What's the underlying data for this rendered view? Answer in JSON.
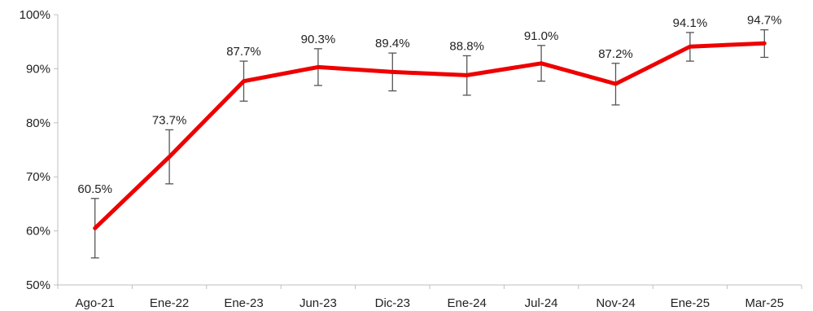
{
  "chart_data": {
    "type": "line",
    "categories": [
      "Ago-21",
      "Ene-22",
      "Ene-23",
      "Jun-23",
      "Dic-23",
      "Ene-24",
      "Jul-24",
      "Nov-24",
      "Ene-25",
      "Mar-25"
    ],
    "series": [
      {
        "values": [
          60.5,
          73.7,
          87.7,
          90.3,
          89.4,
          88.8,
          91.0,
          87.2,
          94.1,
          94.7
        ],
        "error_low": [
          55.0,
          68.7,
          84.0,
          86.9,
          85.9,
          85.1,
          87.7,
          83.3,
          91.4,
          92.1
        ],
        "error_high": [
          66.0,
          78.7,
          91.4,
          93.7,
          92.9,
          92.4,
          94.3,
          91.0,
          96.7,
          97.2
        ],
        "color": "#ee0000"
      }
    ],
    "data_labels": [
      "60.5%",
      "73.7%",
      "87.7%",
      "90.3%",
      "89.4%",
      "88.8%",
      "91.0%",
      "87.2%",
      "94.1%",
      "94.7%"
    ],
    "yticks": [
      50,
      60,
      70,
      80,
      90,
      100
    ],
    "ytick_labels": [
      "50%",
      "60%",
      "70%",
      "80%",
      "90%",
      "100%"
    ],
    "ylim": [
      50,
      100
    ],
    "title": "",
    "xlabel": "",
    "ylabel": "",
    "grid": false,
    "legend": "none",
    "error_bar_color": "#555555"
  }
}
